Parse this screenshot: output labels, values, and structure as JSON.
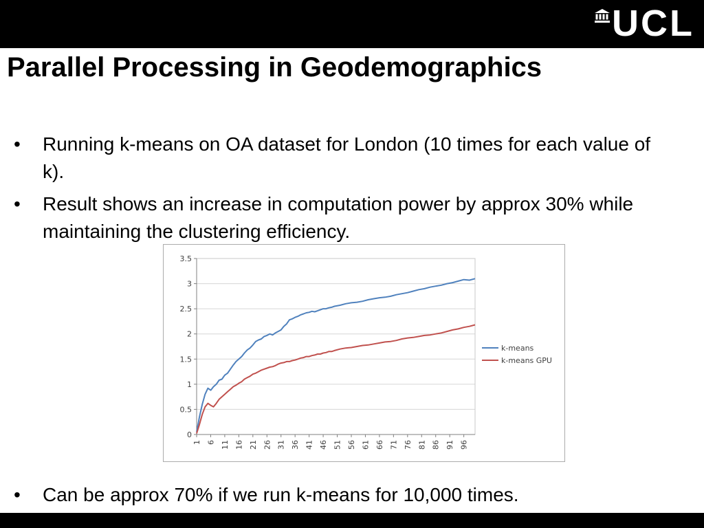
{
  "slide": {
    "logo_text": "UCL",
    "title": "Parallel Processing in Geodemographics",
    "bullet_char": "•",
    "bullets": [
      "Running k-means on OA dataset for London (10 times for each value of k).",
      "Result shows an increase in computation power by approx 30% while maintaining the clustering efficiency."
    ],
    "footer_bullet": "Can be approx 70% if we run k-means for 10,000 times."
  },
  "colors": {
    "banner": "#000000",
    "kmeans": "#4f81bd",
    "kmeans_gpu": "#c0504d",
    "gridline": "#d6d6d6",
    "axis": "#808080"
  },
  "chart_data": {
    "type": "line",
    "title": "",
    "xlabel": "",
    "ylabel": "",
    "xlim": [
      1,
      100
    ],
    "ylim": [
      0,
      3.5
    ],
    "ytick_step": 0.5,
    "xticks": [
      1,
      6,
      11,
      16,
      21,
      26,
      31,
      36,
      41,
      46,
      51,
      56,
      61,
      66,
      71,
      76,
      81,
      86,
      91,
      96
    ],
    "grid": true,
    "legend_position": "right",
    "x": [
      1,
      2,
      3,
      4,
      5,
      6,
      7,
      8,
      9,
      10,
      11,
      12,
      13,
      14,
      15,
      16,
      17,
      18,
      19,
      20,
      21,
      22,
      23,
      24,
      25,
      26,
      27,
      28,
      29,
      30,
      31,
      32,
      33,
      34,
      35,
      36,
      37,
      38,
      39,
      40,
      41,
      42,
      43,
      44,
      45,
      46,
      47,
      48,
      49,
      50,
      52,
      54,
      56,
      58,
      60,
      62,
      64,
      66,
      68,
      70,
      72,
      74,
      76,
      78,
      80,
      82,
      84,
      86,
      88,
      90,
      92,
      94,
      96,
      98,
      100
    ],
    "series": [
      {
        "name": "k-means",
        "color": "#4f81bd",
        "values": [
          0.05,
          0.35,
          0.6,
          0.8,
          0.92,
          0.88,
          0.95,
          1.0,
          1.08,
          1.1,
          1.18,
          1.22,
          1.3,
          1.38,
          1.45,
          1.5,
          1.55,
          1.62,
          1.68,
          1.72,
          1.78,
          1.85,
          1.88,
          1.9,
          1.95,
          1.97,
          2.0,
          1.98,
          2.02,
          2.05,
          2.08,
          2.15,
          2.2,
          2.28,
          2.3,
          2.33,
          2.35,
          2.38,
          2.4,
          2.42,
          2.43,
          2.45,
          2.44,
          2.46,
          2.48,
          2.5,
          2.5,
          2.52,
          2.53,
          2.55,
          2.57,
          2.6,
          2.62,
          2.63,
          2.65,
          2.68,
          2.7,
          2.72,
          2.73,
          2.75,
          2.78,
          2.8,
          2.82,
          2.85,
          2.88,
          2.9,
          2.93,
          2.95,
          2.97,
          3.0,
          3.02,
          3.05,
          3.08,
          3.07,
          3.1
        ]
      },
      {
        "name": "k-means GPU",
        "color": "#c0504d",
        "values": [
          0.02,
          0.2,
          0.4,
          0.55,
          0.62,
          0.58,
          0.55,
          0.62,
          0.7,
          0.75,
          0.8,
          0.85,
          0.9,
          0.95,
          0.98,
          1.02,
          1.05,
          1.1,
          1.13,
          1.16,
          1.2,
          1.22,
          1.25,
          1.28,
          1.3,
          1.32,
          1.34,
          1.35,
          1.37,
          1.4,
          1.42,
          1.43,
          1.45,
          1.45,
          1.47,
          1.48,
          1.5,
          1.52,
          1.53,
          1.55,
          1.55,
          1.57,
          1.58,
          1.6,
          1.6,
          1.62,
          1.63,
          1.65,
          1.65,
          1.67,
          1.7,
          1.72,
          1.73,
          1.75,
          1.77,
          1.78,
          1.8,
          1.82,
          1.84,
          1.85,
          1.87,
          1.9,
          1.92,
          1.93,
          1.95,
          1.97,
          1.98,
          2.0,
          2.02,
          2.05,
          2.08,
          2.1,
          2.13,
          2.15,
          2.18
        ]
      }
    ]
  }
}
